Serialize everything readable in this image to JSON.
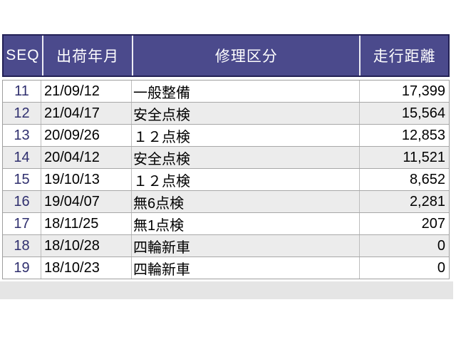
{
  "table": {
    "columns": [
      {
        "key": "seq",
        "label": "SEQ"
      },
      {
        "key": "ship_date",
        "label": "出荷年月"
      },
      {
        "key": "repair_category",
        "label": "修理区分"
      },
      {
        "key": "mileage",
        "label": "走行距離"
      }
    ],
    "rows": [
      {
        "seq": "11",
        "ship_date": "21/09/12",
        "repair_category": "一般整備",
        "mileage": "17,399"
      },
      {
        "seq": "12",
        "ship_date": "21/04/17",
        "repair_category": "安全点検",
        "mileage": "15,564"
      },
      {
        "seq": "13",
        "ship_date": "20/09/26",
        "repair_category": "１２点検",
        "mileage": "12,853"
      },
      {
        "seq": "14",
        "ship_date": "20/04/12",
        "repair_category": "安全点検",
        "mileage": "11,521"
      },
      {
        "seq": "15",
        "ship_date": "19/10/13",
        "repair_category": "１２点検",
        "mileage": "8,652"
      },
      {
        "seq": "16",
        "ship_date": "19/04/07",
        "repair_category": "無6点検",
        "mileage": "2,281"
      },
      {
        "seq": "17",
        "ship_date": "18/11/25",
        "repair_category": "無1点検",
        "mileage": "207"
      },
      {
        "seq": "18",
        "ship_date": "18/10/28",
        "repair_category": "四輪新車",
        "mileage": "0"
      },
      {
        "seq": "19",
        "ship_date": "18/10/23",
        "repair_category": "四輪新車",
        "mileage": "0"
      }
    ]
  },
  "colors": {
    "header_bg": "#4b4a8c",
    "header_text": "#ffffff",
    "header_border": "#232155",
    "header_cell_separator": "#ececf4",
    "seq_text": "#2f2f6e",
    "body_text": "#000000",
    "row_alt_bg": "#ececec",
    "grid_line": "#a8a8a8",
    "footer_band_bg": "#e5e5e5",
    "page_bg": "#ffffff"
  }
}
